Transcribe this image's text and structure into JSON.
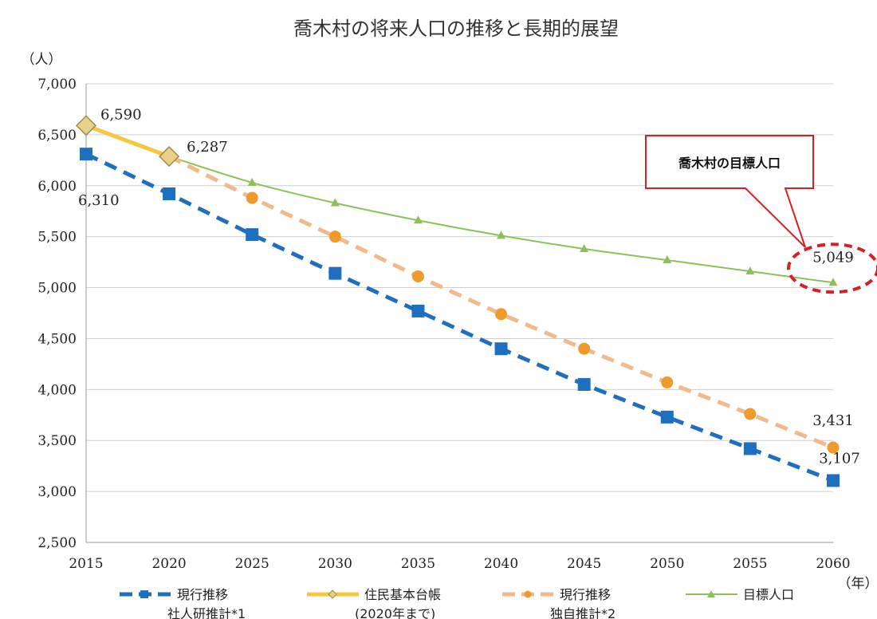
{
  "chart_data": {
    "type": "line",
    "title": "喬木村の将来人口の推移と長期的展望",
    "y_unit": "（人）",
    "x_unit": "（年）",
    "x": [
      2015,
      2020,
      2025,
      2030,
      2035,
      2040,
      2045,
      2050,
      2055,
      2060
    ],
    "x_labels": [
      "2015",
      "2020",
      "2025",
      "2030",
      "2035",
      "2040",
      "2045",
      "2050",
      "2055",
      "2060"
    ],
    "ylim": [
      2500,
      7000
    ],
    "y_ticks": [
      2500,
      3000,
      3500,
      4000,
      4500,
      5000,
      5500,
      6000,
      6500,
      7000
    ],
    "y_tick_labels": [
      "2,500",
      "3,000",
      "3,500",
      "4,000",
      "4,500",
      "5,000",
      "5,500",
      "6,000",
      "6,500",
      "7,000"
    ],
    "grid": "horizontal",
    "legend_position": "bottom",
    "series": [
      {
        "name": "現行推移",
        "name_line2": "社人研推計*1",
        "color": "#1f6fc1",
        "style": "dashed",
        "marker": "square",
        "x": [
          2015,
          2020,
          2025,
          2030,
          2035,
          2040,
          2045,
          2050,
          2055,
          2060
        ],
        "values": [
          6310,
          5920,
          5520,
          5140,
          4770,
          4400,
          4050,
          3730,
          3420,
          3107
        ]
      },
      {
        "name": "住民基本台帳",
        "name_line2": "(2020年まで)",
        "color": "#f5c842",
        "marker_fill": "#e8d28a",
        "marker_stroke": "#9c8a4a",
        "style": "solid-thick",
        "marker": "diamond",
        "x": [
          2015,
          2020
        ],
        "values": [
          6590,
          6287
        ]
      },
      {
        "name": "現行推移",
        "name_line2": "独自推計*2",
        "color": "#f2b98a",
        "marker_fill": "#f09a2c",
        "style": "dashed",
        "marker": "circle",
        "x": [
          2020,
          2025,
          2030,
          2035,
          2040,
          2045,
          2050,
          2055,
          2060
        ],
        "values": [
          6287,
          5880,
          5500,
          5110,
          4740,
          4400,
          4070,
          3760,
          3431
        ]
      },
      {
        "name": "目標人口",
        "name_line2": "",
        "color": "#8dc05a",
        "style": "solid",
        "marker": "triangle",
        "x": [
          2020,
          2025,
          2030,
          2035,
          2040,
          2045,
          2050,
          2055,
          2060
        ],
        "values": [
          6287,
          6030,
          5830,
          5660,
          5510,
          5380,
          5270,
          5160,
          5049
        ]
      }
    ],
    "annotations": [
      {
        "text": "6,590",
        "x": 2015,
        "y": 6590
      },
      {
        "text": "6,287",
        "x": 2020,
        "y": 6287
      },
      {
        "text": "6,310",
        "x": 2015,
        "y": 6310
      },
      {
        "text": "5,049",
        "x": 2060,
        "y": 5049
      },
      {
        "text": "3,431",
        "x": 2060,
        "y": 3431
      },
      {
        "text": "3,107",
        "x": 2060,
        "y": 3107
      }
    ],
    "callout": {
      "text": "喬木村の目標人口",
      "border_color": "#d62026",
      "ellipse_color": "#d62026"
    }
  }
}
